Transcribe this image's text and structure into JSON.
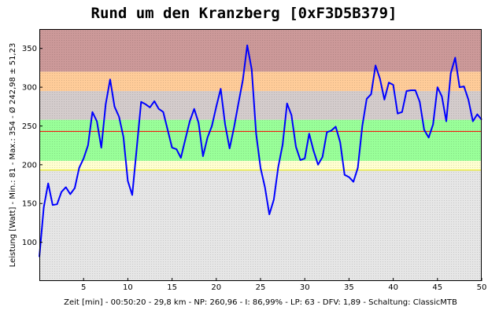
{
  "chart_data": {
    "type": "line",
    "title": "Rund um den Kranzberg [0xF3D5B379]",
    "xlabel": "Zeit [min] - 00:50:20 - 29,8 km - NP: 260,96 - I: 86,99% - LP: 63 - DFV: 1,89 - Schaltung: ClassicMTB",
    "ylabel": "Leistung [Watt] - Min.: 81 - Max.: 354 - Ø 242,98 ± 51,23",
    "xlim": [
      0,
      50
    ],
    "ylim": [
      50,
      375
    ],
    "x_ticks": [
      5,
      10,
      15,
      20,
      25,
      30,
      35,
      40,
      45,
      50
    ],
    "y_ticks": [
      100,
      150,
      200,
      250,
      300,
      350
    ],
    "grid": false,
    "bands": [
      {
        "from": 50,
        "to": 193,
        "color": "#e6e6e6"
      },
      {
        "from": 193,
        "to": 205,
        "color": "#ffffd0"
      },
      {
        "from": 205,
        "to": 258,
        "color": "#99ff99"
      },
      {
        "from": 258,
        "to": 295,
        "color": "#d4cccc"
      },
      {
        "from": 295,
        "to": 320,
        "color": "#ffcc99"
      },
      {
        "from": 320,
        "to": 375,
        "color": "#cc9999"
      }
    ],
    "reference_lines": [
      {
        "y": 242.98,
        "color": "#ff0000"
      },
      {
        "y": 193,
        "color": "#e6e600"
      }
    ],
    "series": [
      {
        "color": "#0000ff",
        "x": [
          0,
          0.5,
          1.0,
          1.5,
          2.0,
          2.5,
          3.0,
          3.5,
          4.0,
          4.5,
          5.0,
          5.5,
          6.0,
          6.5,
          7.0,
          7.5,
          8.0,
          8.5,
          9.0,
          9.5,
          10.0,
          10.5,
          11.0,
          11.5,
          12.0,
          12.5,
          13.0,
          13.5,
          14.0,
          14.5,
          15.0,
          15.5,
          16.0,
          16.5,
          17.0,
          17.5,
          18.0,
          18.5,
          19.0,
          19.5,
          20.0,
          20.5,
          21.0,
          21.5,
          22.0,
          22.5,
          23.0,
          23.5,
          24.0,
          24.5,
          25.0,
          25.5,
          26.0,
          26.5,
          27.0,
          27.5,
          28.0,
          28.5,
          29.0,
          29.5,
          30.0,
          30.5,
          31.0,
          31.5,
          32.0,
          32.5,
          33.0,
          33.5,
          34.0,
          34.5,
          35.0,
          35.5,
          36.0,
          36.5,
          37.0,
          37.5,
          38.0,
          38.5,
          39.0,
          39.5,
          40.0,
          40.5,
          41.0,
          41.5,
          42.0,
          42.5,
          43.0,
          43.5,
          44.0,
          44.5,
          45.0,
          45.5,
          46.0,
          46.5,
          47.0,
          47.5,
          48.0,
          48.5,
          49.0,
          49.5,
          50.0
        ],
        "values": [
          81,
          145,
          176,
          148,
          149,
          165,
          171,
          162,
          170,
          196,
          208,
          225,
          268,
          256,
          222,
          278,
          310,
          275,
          262,
          236,
          179,
          161,
          220,
          281,
          278,
          274,
          282,
          272,
          268,
          245,
          222,
          220,
          209,
          233,
          256,
          272,
          254,
          211,
          235,
          250,
          275,
          298,
          252,
          221,
          248,
          279,
          309,
          354,
          323,
          240,
          196,
          171,
          136,
          155,
          197,
          226,
          279,
          264,
          223,
          206,
          208,
          240,
          218,
          200,
          210,
          242,
          244,
          249,
          229,
          187,
          184,
          178,
          196,
          250,
          285,
          291,
          328,
          311,
          284,
          306,
          303,
          266,
          268,
          295,
          296,
          296,
          281,
          245,
          235,
          252,
          300,
          288,
          256,
          318,
          338,
          300,
          301,
          284,
          256,
          265,
          258
        ]
      }
    ]
  }
}
